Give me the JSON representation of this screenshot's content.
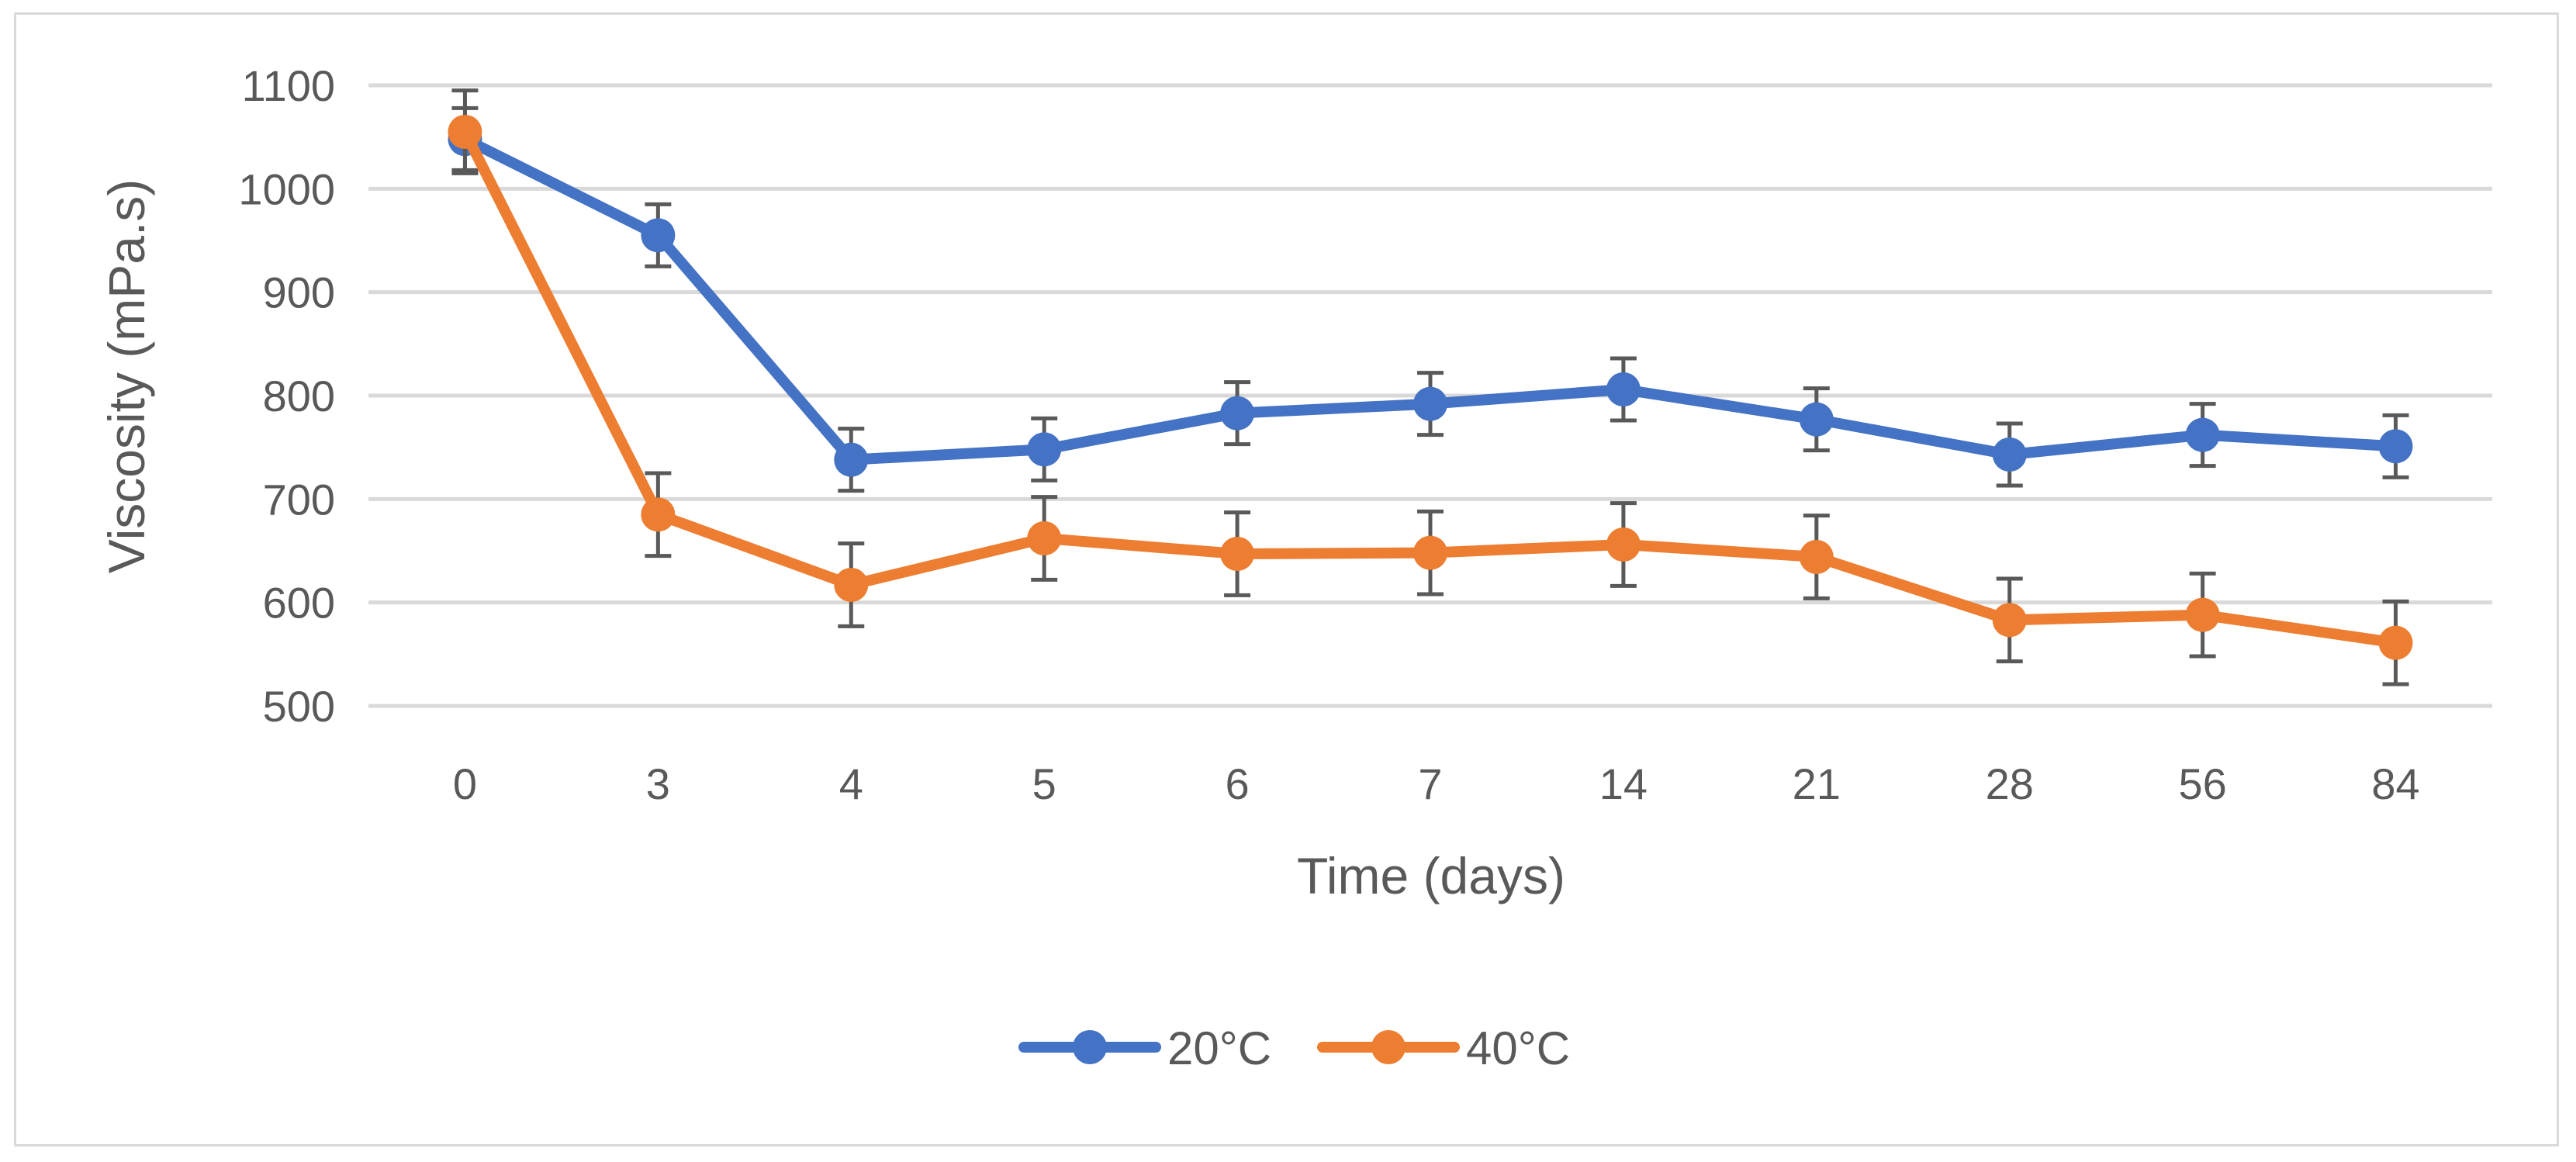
{
  "chart_data": {
    "type": "line",
    "title": "",
    "xlabel": "Time (days)",
    "ylabel": "Viscosity (mPa.s)",
    "ylim": [
      500,
      1100
    ],
    "yticks": [
      500,
      600,
      700,
      800,
      900,
      1000,
      1100
    ],
    "ytick_labels": [
      "500",
      "600",
      "700",
      "800",
      "900",
      "1000",
      "1100"
    ],
    "grid": true,
    "legend_position": "bottom",
    "categories": [
      "0",
      "3",
      "4",
      "5",
      "6",
      "7",
      "14",
      "21",
      "28",
      "56",
      "84"
    ],
    "series": [
      {
        "name": "20°C",
        "color": "#4472c4",
        "values": [
          1048,
          955,
          738,
          748,
          783,
          792,
          806,
          777,
          743,
          762,
          751
        ],
        "error": [
          30,
          30,
          30,
          30,
          30,
          30,
          30,
          30,
          30,
          30,
          30
        ]
      },
      {
        "name": "40°C",
        "color": "#ed7d31",
        "values": [
          1055,
          685,
          617,
          662,
          647,
          648,
          656,
          644,
          583,
          588,
          561
        ],
        "error": [
          40,
          40,
          40,
          40,
          40,
          40,
          40,
          40,
          40,
          40,
          40
        ]
      }
    ]
  }
}
